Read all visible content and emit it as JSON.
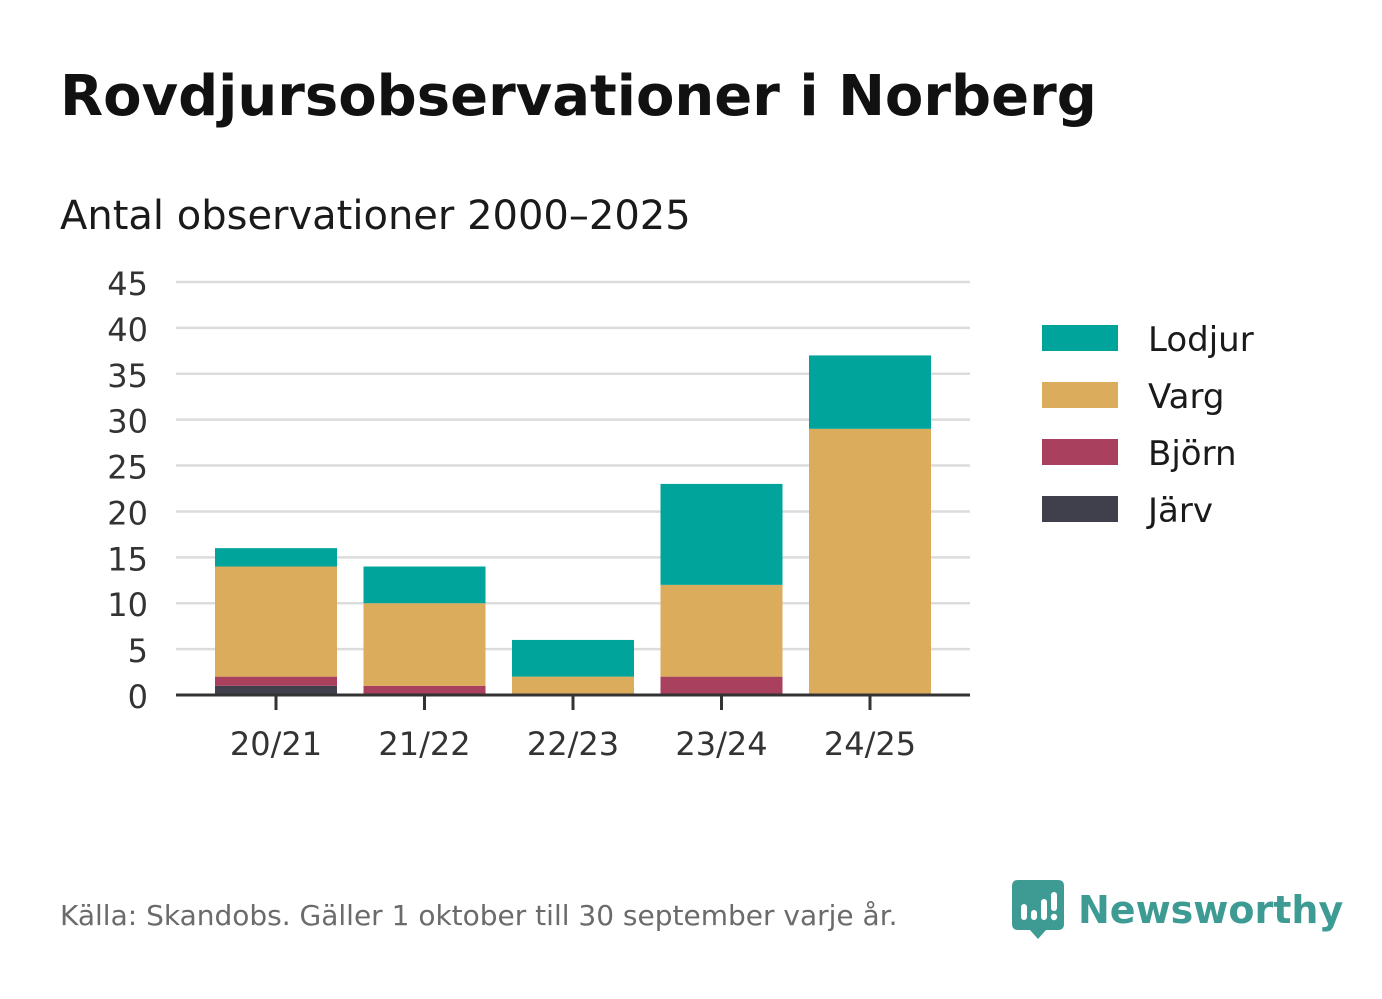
{
  "header": {
    "title": "Rovdjursobservationer i Norberg"
  },
  "footer": {
    "source": "Källa: Skandobs. Gäller 1 oktober till 30 september varje år.",
    "brand": "Newsworthy",
    "brand_icon": "chart-bubble-icon"
  },
  "chart_data": {
    "type": "bar",
    "stacked": true,
    "title": "Antal observationer 2000–2025",
    "xlabel": "",
    "ylabel": "",
    "categories": [
      "20/21",
      "21/22",
      "22/23",
      "23/24",
      "24/25"
    ],
    "ylim": [
      0,
      45
    ],
    "yticks": [
      0,
      5,
      10,
      15,
      20,
      25,
      30,
      35,
      40,
      45
    ],
    "grid": true,
    "legend_position": "right",
    "series": [
      {
        "name": "Järv",
        "color": "#403f4c",
        "values": [
          1,
          0,
          0,
          0,
          0
        ]
      },
      {
        "name": "Björn",
        "color": "#a8405e",
        "values": [
          1,
          1,
          0,
          2,
          0
        ]
      },
      {
        "name": "Varg",
        "color": "#daac5c",
        "values": [
          12,
          9,
          2,
          10,
          29
        ]
      },
      {
        "name": "Lodjur",
        "color": "#00a49a",
        "values": [
          2,
          4,
          4,
          11,
          8
        ]
      }
    ],
    "legend_order": [
      "Lodjur",
      "Varg",
      "Björn",
      "Järv"
    ]
  }
}
